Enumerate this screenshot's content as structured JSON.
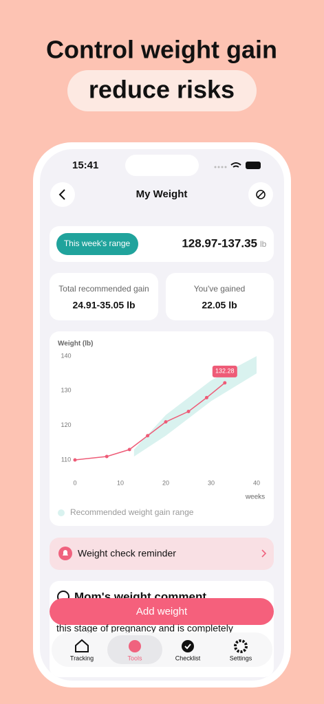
{
  "headline": {
    "line1": "Control weight gain",
    "line2": "reduce risks"
  },
  "status_bar": {
    "time": "15:41"
  },
  "nav": {
    "title": "My Weight"
  },
  "range_card": {
    "label": "This week's range",
    "value": "128.97-137.35",
    "unit": "lb"
  },
  "gain_cards": [
    {
      "label": "Total recommended gain",
      "value": "24.91-35.05 lb"
    },
    {
      "label": "You've gained",
      "value": "22.05 lb"
    }
  ],
  "chart_data": {
    "type": "line",
    "y_label": "Weight (lb)",
    "x_label": "weeks",
    "x": [
      0,
      7,
      12,
      16,
      20,
      25,
      29,
      33
    ],
    "series": [
      {
        "color": "#ee5b77",
        "values": [
          110,
          111,
          113,
          117,
          121,
          124,
          128,
          132.28
        ]
      }
    ],
    "band": {
      "name": "Recommended weight gain range",
      "color": "#d9f2ef",
      "x": [
        13,
        20,
        30,
        40
      ],
      "lower": [
        111,
        117,
        127,
        135
      ],
      "upper": [
        113,
        123,
        133,
        140
      ]
    },
    "xlim": [
      0,
      40
    ],
    "xticks": [
      0,
      10,
      20,
      30,
      40
    ],
    "ylim": [
      110,
      140
    ],
    "yticks": [
      110,
      120,
      130,
      140
    ],
    "grid": false
  },
  "reminder": {
    "label": "Weight check reminder"
  },
  "comment": {
    "title": "Mom's weight comment",
    "text": "this stage of pregnancy and is completely"
  },
  "button": {
    "label": "Add weight"
  },
  "tabs": [
    "Tracking",
    "Tools",
    "Checklist",
    "Settings"
  ]
}
